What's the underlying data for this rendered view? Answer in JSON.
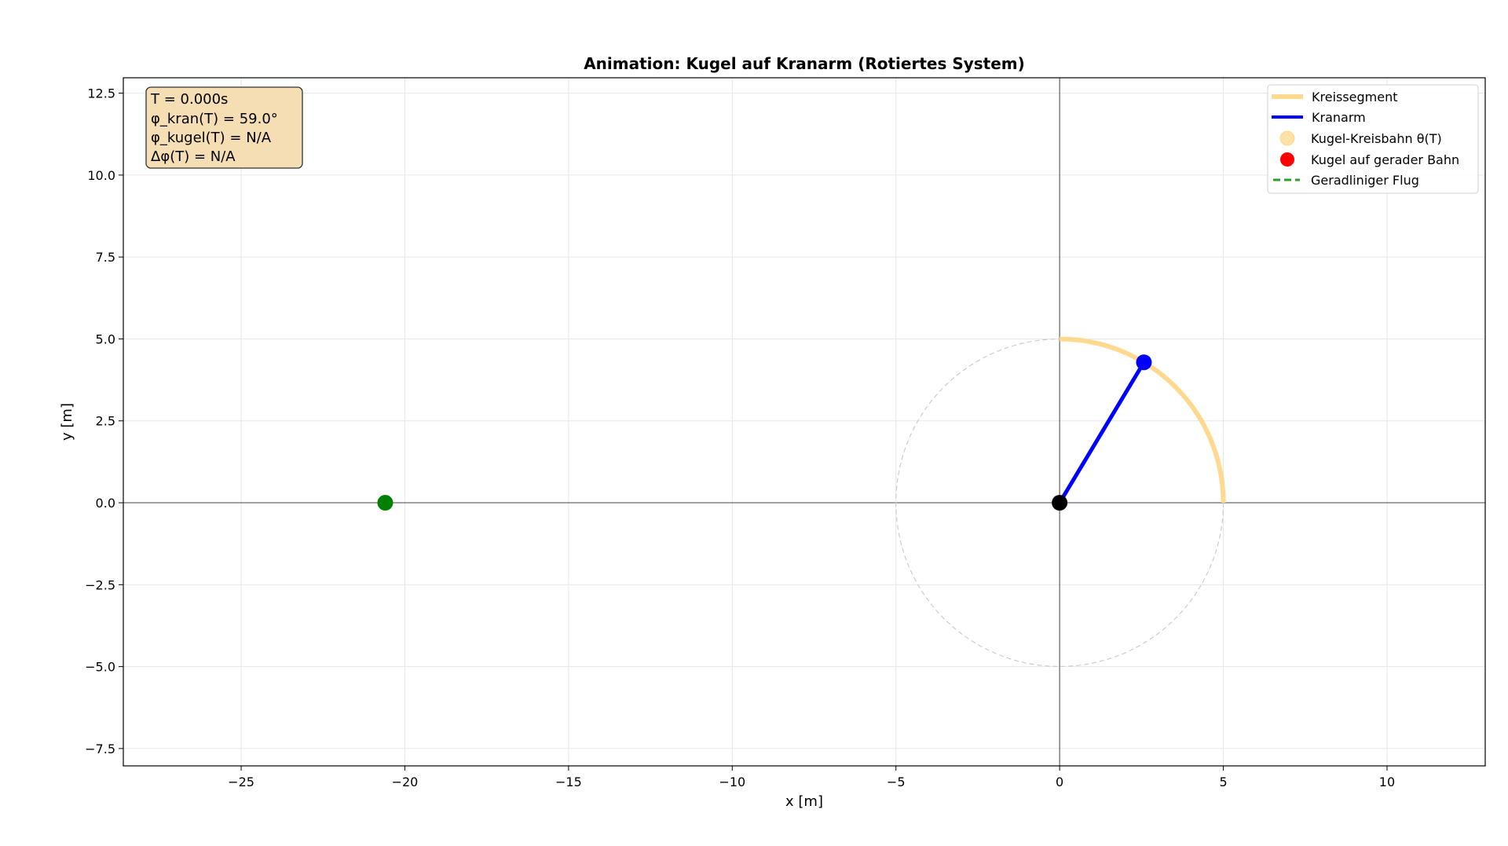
{
  "chart_data": {
    "type": "line",
    "title": "Animation: Kugel auf Kranarm (Rotiertes System)",
    "xlabel": "x [m]",
    "ylabel": "y [m]",
    "xlim": [
      -28.6,
      13.0
    ],
    "ylim": [
      -8.03,
      12.97
    ],
    "xticks": [
      -25,
      -20,
      -15,
      -10,
      -5,
      0,
      5,
      10
    ],
    "yticks": [
      -7.5,
      -5.0,
      -2.5,
      0.0,
      2.5,
      5.0,
      7.5,
      10.0,
      12.5
    ],
    "xtick_labels": [
      "−25",
      "−20",
      "−15",
      "−10",
      "−5",
      "0",
      "5",
      "10"
    ],
    "ytick_labels": [
      "−7.5",
      "−5.0",
      "−2.5",
      "0.0",
      "2.5",
      "5.0",
      "7.5",
      "10.0",
      "12.5"
    ],
    "grid": true,
    "equal_aspect": true,
    "legend_position": "top-right",
    "circle": {
      "center": [
        0,
        0
      ],
      "radius": 5,
      "style": "dashed",
      "color": "#cccccc"
    },
    "series": [
      {
        "name": "Kreissegment",
        "kind": "arc",
        "radius": 5,
        "start_deg": 0,
        "end_deg": 90,
        "color": "#ffd98f"
      },
      {
        "name": "Kranarm",
        "kind": "line",
        "x": [
          0,
          2.575
        ],
        "y": [
          0,
          4.286
        ],
        "color": "#0000ff"
      },
      {
        "name": "Kugel-Kreisbahn θ(T)",
        "kind": "marker",
        "x": [],
        "y": [],
        "color": "#ffe0a8"
      },
      {
        "name": "Kugel auf gerader Bahn",
        "kind": "marker",
        "x": [],
        "y": [],
        "color": "#ff0000"
      },
      {
        "name": "Geradliniger Flug",
        "kind": "dashed-line",
        "x": [],
        "y": [],
        "color": "#2ca02c"
      }
    ],
    "points": [
      {
        "role": "crane-tip",
        "x": 2.575,
        "y": 4.286,
        "color": "#0000ff"
      },
      {
        "role": "pivot",
        "x": 0,
        "y": 0,
        "color": "#000000"
      },
      {
        "role": "ball",
        "x": -20.6,
        "y": 0,
        "color": "#008000"
      }
    ],
    "info_box": {
      "lines": [
        "T = 0.000s",
        "φ_kran(T) = 59.0°",
        "φ_kugel(T) = N/A",
        "Δφ(T) = N/A"
      ],
      "background": "#f5deb3"
    }
  }
}
